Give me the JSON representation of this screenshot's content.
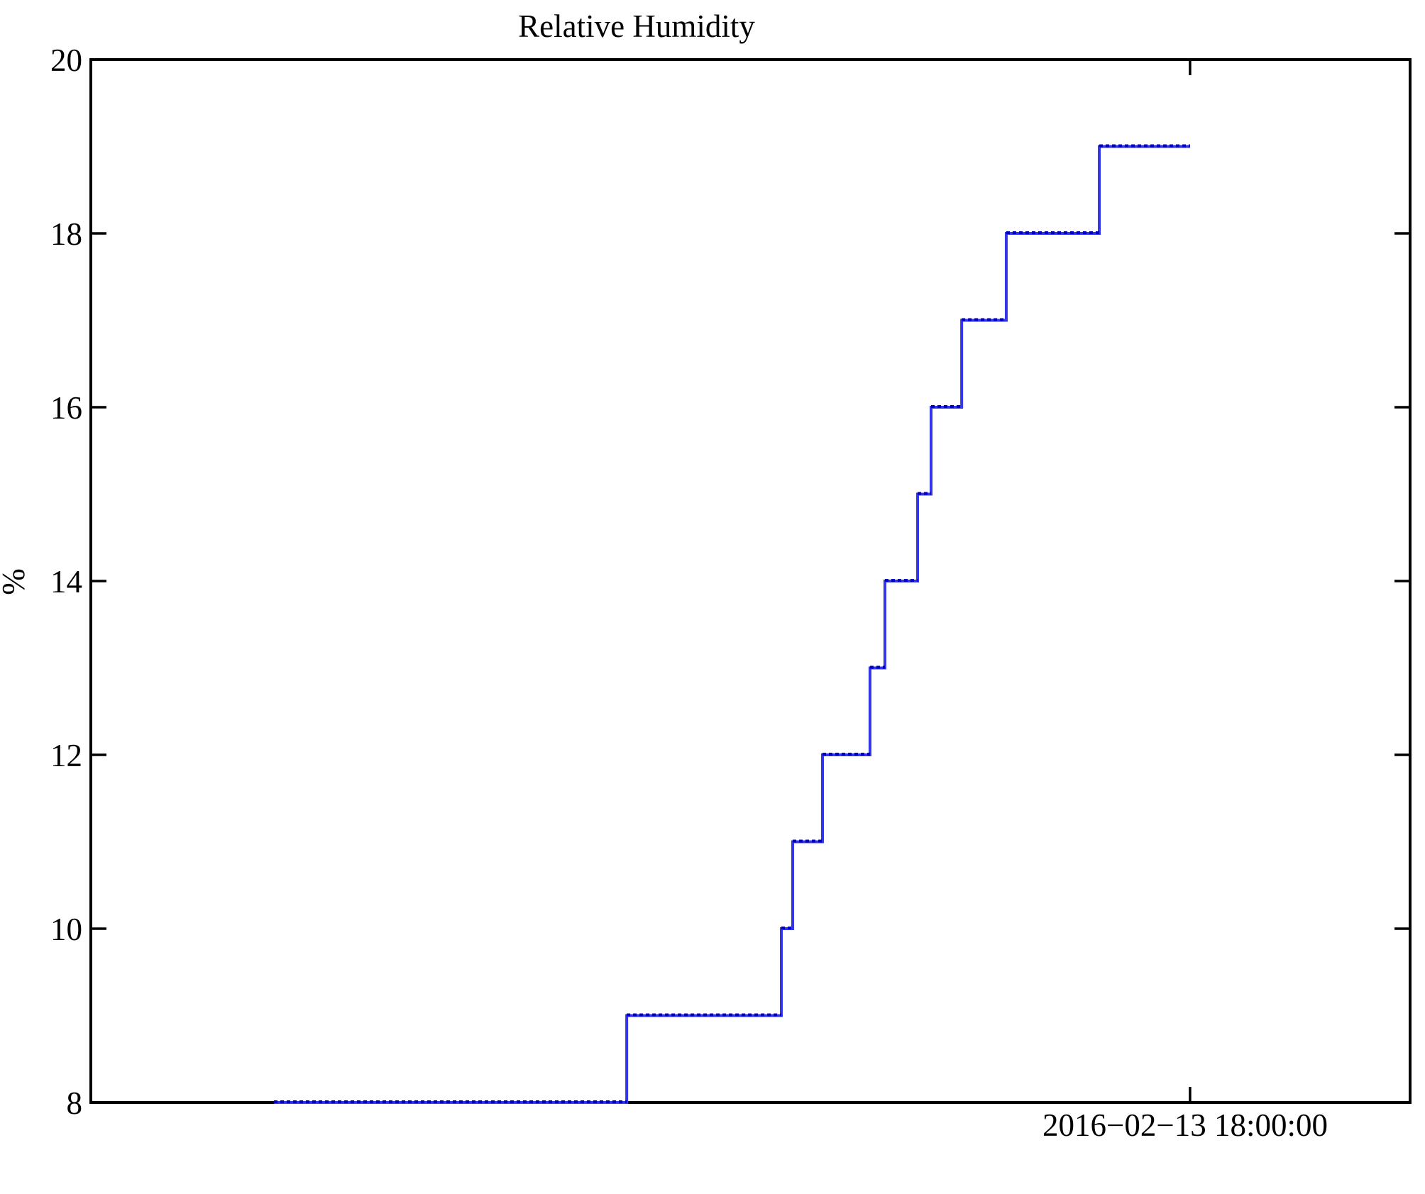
{
  "chart_data": {
    "type": "line",
    "subtype": "step",
    "title": "Relative Humidity",
    "xlabel": "",
    "ylabel": "%",
    "ylim": [
      8,
      20
    ],
    "yticks": [
      8,
      10,
      12,
      14,
      16,
      18,
      20
    ],
    "grid": false,
    "legend": "none",
    "line_color": "#3535e8",
    "line_dash_color": "#0000bf",
    "axis_color": "#000000",
    "background_color": "#ffffff",
    "x_axis": {
      "kind": "time",
      "tick_label": "2016−02−13 18:00:00",
      "tick_frac": 0.8332
    },
    "series": [
      {
        "name": "Relative Humidity",
        "unit": "%",
        "steps": [
          {
            "value": 8,
            "from_frac": 0.1388,
            "to_frac": 0.4062
          },
          {
            "value": 9,
            "from_frac": 0.4062,
            "to_frac": 0.5234
          },
          {
            "value": 10,
            "from_frac": 0.5234,
            "to_frac": 0.532
          },
          {
            "value": 11,
            "from_frac": 0.532,
            "to_frac": 0.5546
          },
          {
            "value": 12,
            "from_frac": 0.5546,
            "to_frac": 0.5906
          },
          {
            "value": 13,
            "from_frac": 0.5906,
            "to_frac": 0.6019
          },
          {
            "value": 14,
            "from_frac": 0.6019,
            "to_frac": 0.6267
          },
          {
            "value": 15,
            "from_frac": 0.6267,
            "to_frac": 0.6369
          },
          {
            "value": 16,
            "from_frac": 0.6369,
            "to_frac": 0.6601
          },
          {
            "value": 17,
            "from_frac": 0.6601,
            "to_frac": 0.6939
          },
          {
            "value": 18,
            "from_frac": 0.6939,
            "to_frac": 0.7644
          },
          {
            "value": 19,
            "from_frac": 0.7644,
            "to_frac": 0.8332
          }
        ]
      }
    ]
  }
}
